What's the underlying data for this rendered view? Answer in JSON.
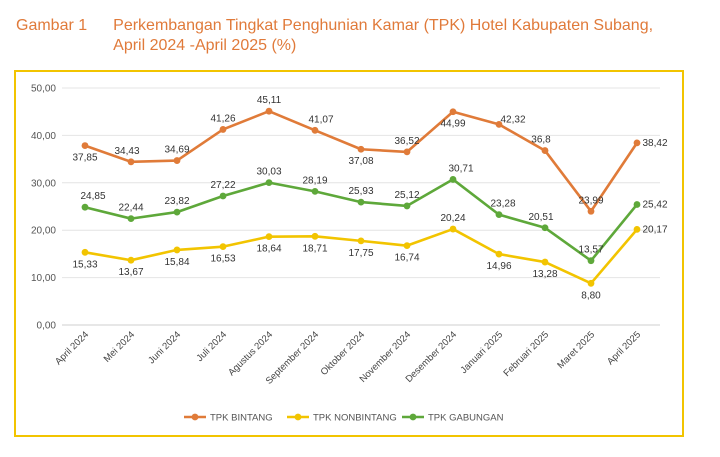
{
  "figure": {
    "label": "Gambar 1",
    "title": "Perkembangan Tingkat Penghunian Kamar (TPK) Hotel Kabupaten Subang, April 2024 -April 2025 (%)"
  },
  "chart_data": {
    "type": "line",
    "categories": [
      "April 2024",
      "Mei 2024",
      "Juni 2024",
      "Juli 2024",
      "Agustus 2024",
      "September 2024",
      "Oktober 2024",
      "November 2024",
      "Desember 2024",
      "Januari 2025",
      "Februari 2025",
      "Maret 2025",
      "April 2025"
    ],
    "ylim": [
      0,
      50
    ],
    "yticks": [
      "0,00",
      "10,00",
      "20,00",
      "30,00",
      "40,00",
      "50,00"
    ],
    "grid": true,
    "legend": "bottom",
    "series": [
      {
        "name": "TPK BINTANG",
        "color": "#e07b39",
        "values": [
          37.85,
          34.43,
          34.69,
          41.26,
          45.11,
          41.07,
          37.08,
          36.52,
          44.99,
          42.32,
          36.8,
          23.99,
          38.42
        ],
        "labels": [
          "37,85",
          "34,43",
          "34,69",
          "41,26",
          "45,11",
          "41,07",
          "37,08",
          "36,52",
          "44,99",
          "42,32",
          "36,8",
          "23,99",
          "38,42"
        ]
      },
      {
        "name": "TPK NONBINTANG",
        "color": "#f2c400",
        "values": [
          15.33,
          13.67,
          15.84,
          16.53,
          18.64,
          18.71,
          17.75,
          16.74,
          20.24,
          14.96,
          13.28,
          8.8,
          20.17
        ],
        "labels": [
          "15,33",
          "13,67",
          "15,84",
          "16,53",
          "18,64",
          "18,71",
          "17,75",
          "16,74",
          "20,24",
          "14,96",
          "13,28",
          "8,80",
          "20,17"
        ]
      },
      {
        "name": "TPK GABUNGAN",
        "color": "#5ea83a",
        "values": [
          24.85,
          22.44,
          23.82,
          27.22,
          30.03,
          28.19,
          25.93,
          25.12,
          30.71,
          23.28,
          20.51,
          13.57,
          25.42
        ],
        "labels": [
          "24,85",
          "22,44",
          "23,82",
          "27,22",
          "30,03",
          "28,19",
          "25,93",
          "25,12",
          "30,71",
          "23,28",
          "20,51",
          "13,57",
          "25,42"
        ]
      }
    ]
  }
}
